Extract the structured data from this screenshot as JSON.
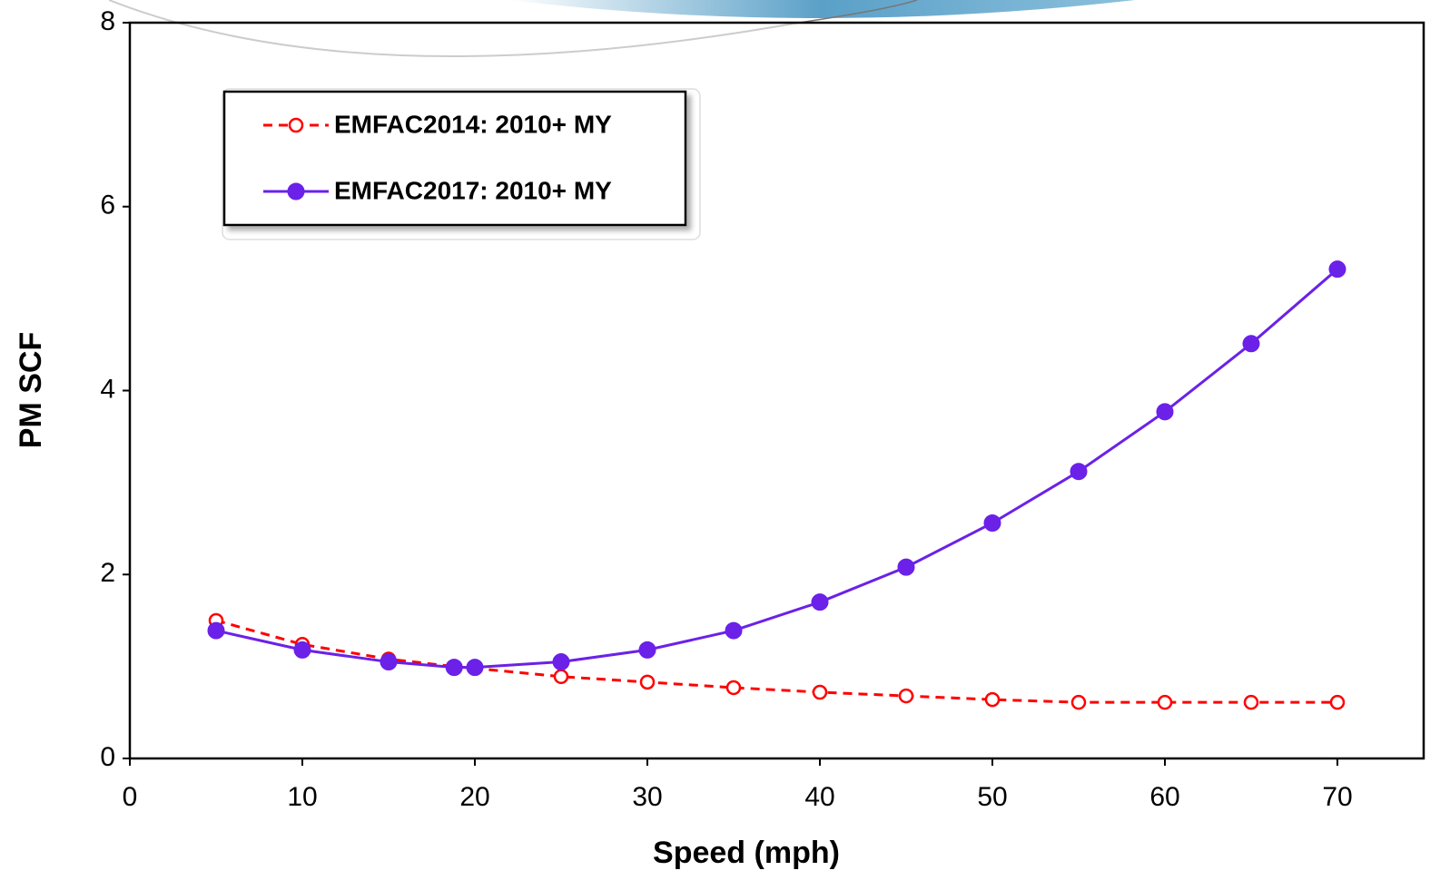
{
  "chart_data": {
    "type": "line",
    "x_label": "Speed (mph)",
    "y_label": "PM SCF",
    "xlim": [
      0,
      75
    ],
    "xticks": [
      0,
      10,
      20,
      30,
      40,
      50,
      60,
      70
    ],
    "ylim": [
      0,
      8
    ],
    "yticks": [
      0,
      2,
      4,
      6,
      8
    ],
    "legend": "upper-left",
    "series": [
      {
        "name": "EMFAC2014: 2010+ MY",
        "color": "#ff0000",
        "line_style": "dashed",
        "marker": "open",
        "x": [
          5,
          10,
          15,
          18.8,
          20,
          25,
          30,
          35,
          40,
          45,
          50,
          55,
          60,
          65,
          70
        ],
        "values": [
          1.5,
          1.24,
          1.08,
          1.0,
          0.98,
          0.89,
          0.83,
          0.77,
          0.72,
          0.68,
          0.64,
          0.61,
          0.61,
          0.61,
          0.61
        ]
      },
      {
        "name": "EMFAC2017: 2010+ MY",
        "color": "#6b21e8",
        "line_style": "solid",
        "marker": "filled",
        "x": [
          5,
          10,
          15,
          18.8,
          20,
          25,
          30,
          35,
          40,
          45,
          50,
          55,
          60,
          65,
          70
        ],
        "values": [
          1.39,
          1.18,
          1.05,
          0.99,
          0.99,
          1.05,
          1.18,
          1.39,
          1.7,
          2.08,
          2.56,
          3.12,
          3.77,
          4.51,
          5.32
        ]
      }
    ]
  }
}
